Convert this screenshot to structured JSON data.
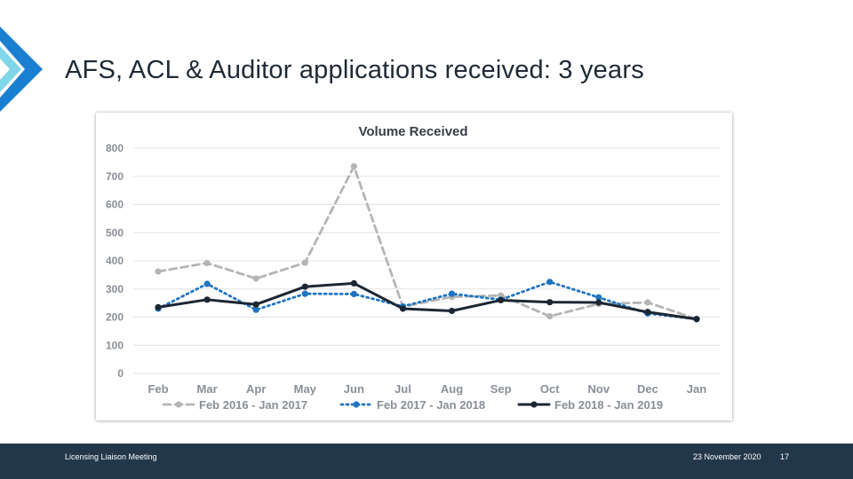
{
  "slide": {
    "title": "AFS, ACL & Auditor applications received: 3 years"
  },
  "footer": {
    "left_text": "Licensing Liaison Meeting",
    "date": "23 November 2020",
    "page_number": "17"
  },
  "colors": {
    "chevron_dark": "#1b7fd1",
    "chevron_light": "#7fd6e8",
    "footer_bg": "#23374a",
    "series_2016": "#b5b5b5",
    "series_2017": "#1f74c1",
    "series_2018": "#1c2733"
  },
  "chart_data": {
    "type": "line",
    "title": "Volume Received",
    "xlabel": "",
    "ylabel": "",
    "categories": [
      "Feb",
      "Mar",
      "Apr",
      "May",
      "Jun",
      "Jul",
      "Aug",
      "Sep",
      "Oct",
      "Nov",
      "Dec",
      "Jan"
    ],
    "ylim": [
      0,
      800
    ],
    "yticks": [
      0,
      100,
      200,
      300,
      400,
      500,
      600,
      700,
      800
    ],
    "grid": true,
    "legend_position": "bottom",
    "series": [
      {
        "name": "Feb 2016 - Jan 2017",
        "style": "dashed",
        "color": "#b5b5b5",
        "values": [
          362,
          392,
          337,
          393,
          735,
          237,
          272,
          277,
          203,
          247,
          252,
          193
        ]
      },
      {
        "name": "Feb 2017 - Jan 2018",
        "style": "dotted",
        "color": "#1f74c1",
        "values": [
          230,
          318,
          226,
          283,
          282,
          238,
          283,
          262,
          325,
          270,
          213,
          193
        ]
      },
      {
        "name": "Feb 2018 - Jan 2019",
        "style": "solid",
        "color": "#1c2733",
        "values": [
          235,
          262,
          245,
          308,
          320,
          230,
          222,
          260,
          253,
          252,
          218,
          193
        ]
      }
    ]
  }
}
